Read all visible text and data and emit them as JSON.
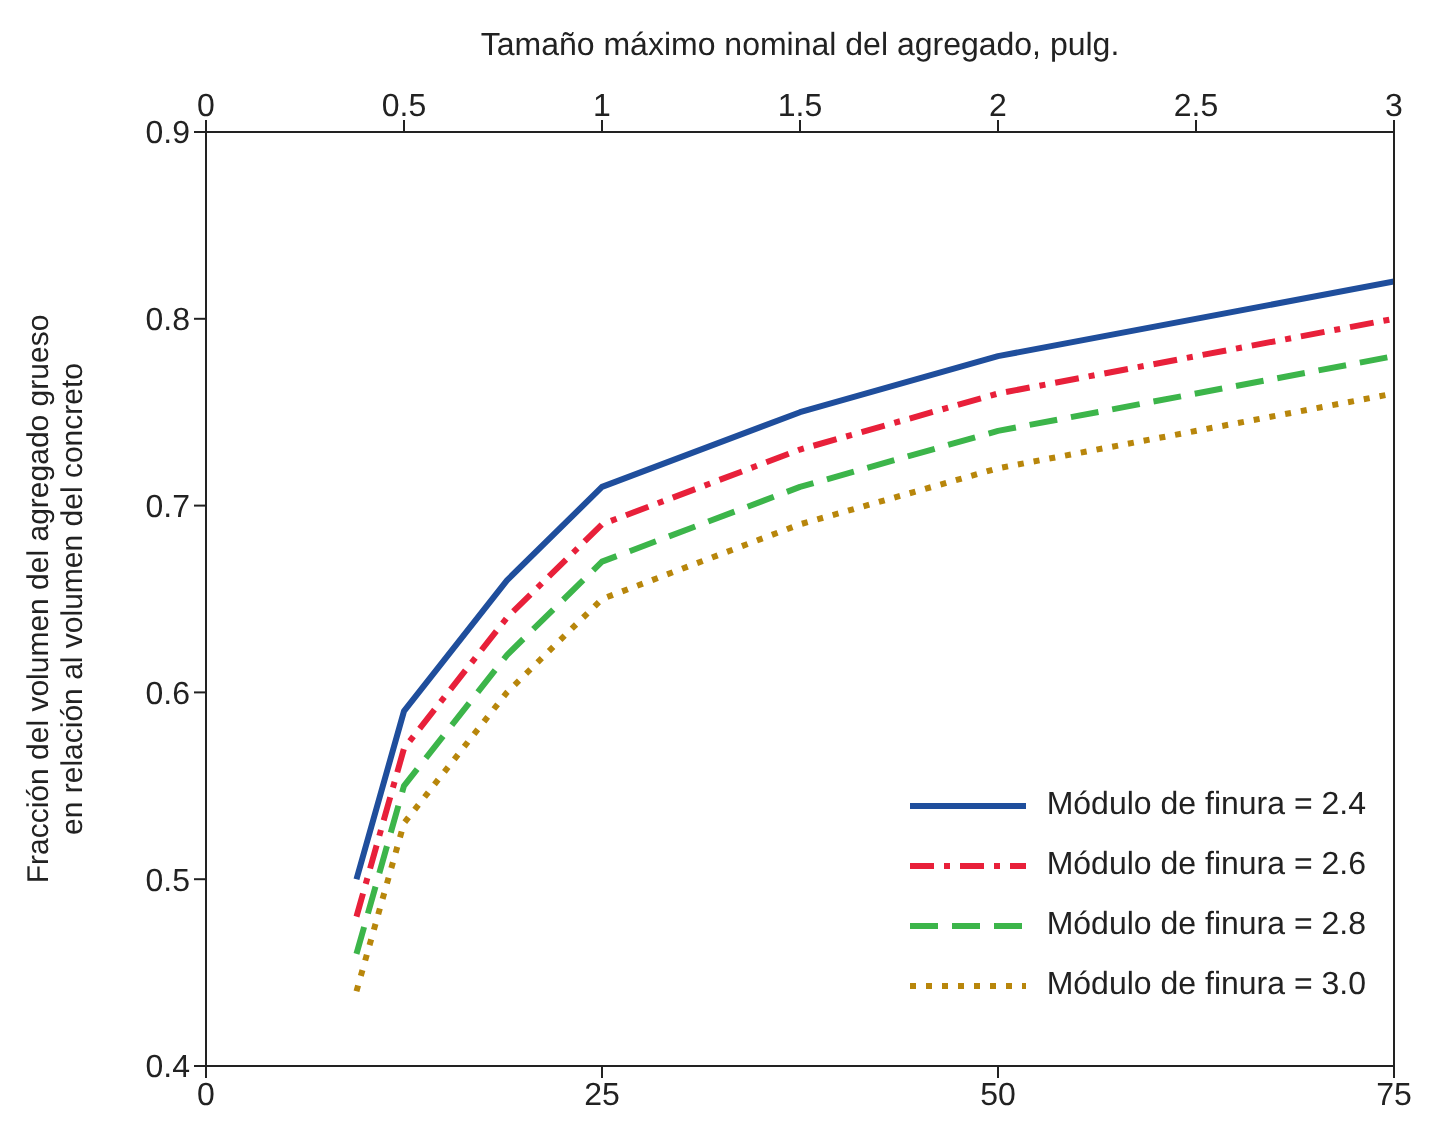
{
  "chart_data": {
    "type": "line",
    "x2label": "Tamaño máximo nominal del agregado, pulg.",
    "ylabel": "Fracción del volumen del agregado grueso\nen relación al volumen del concreto",
    "x": [
      9.5,
      12.5,
      19,
      25,
      37.5,
      50,
      75
    ],
    "xlim": [
      0,
      75
    ],
    "xticks": [
      0,
      25,
      50,
      75
    ],
    "x2lim": [
      0,
      3
    ],
    "x2ticks": [
      0,
      0.5,
      1,
      1.5,
      2,
      2.5,
      3
    ],
    "ylim": [
      0.4,
      0.9
    ],
    "yticks": [
      0.4,
      0.5,
      0.6,
      0.7,
      0.8,
      0.9
    ],
    "grid": false,
    "legend": "bottom right",
    "marker": "none",
    "series": [
      {
        "name": "Módulo de finura = 2.4",
        "color": "#1f4e9c",
        "line_style": "solid",
        "values": [
          0.5,
          0.59,
          0.66,
          0.71,
          0.75,
          0.78,
          0.82
        ]
      },
      {
        "name": "Módulo de finura = 2.6",
        "color": "#e8203a",
        "line_style": "dashdot",
        "values": [
          0.48,
          0.57,
          0.64,
          0.69,
          0.73,
          0.76,
          0.8
        ]
      },
      {
        "name": "Módulo de finura = 2.8",
        "color": "#3cb54a",
        "line_style": "dashed",
        "values": [
          0.46,
          0.55,
          0.62,
          0.67,
          0.71,
          0.74,
          0.78
        ]
      },
      {
        "name": "Módulo de finura = 3.0",
        "color": "#b8860b",
        "line_style": "dotted",
        "values": [
          0.44,
          0.53,
          0.6,
          0.65,
          0.69,
          0.72,
          0.76
        ]
      }
    ]
  }
}
